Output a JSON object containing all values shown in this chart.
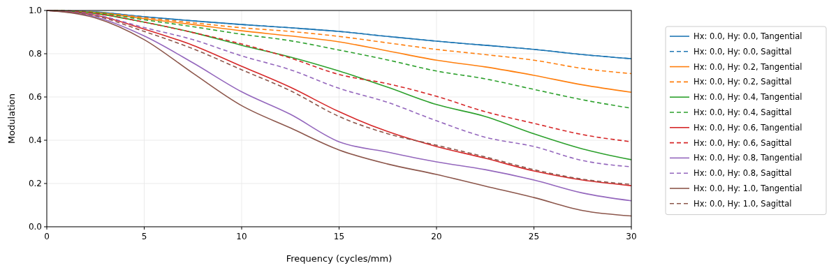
{
  "chart_data": {
    "type": "line",
    "xlabel": "Frequency (cycles/mm)",
    "ylabel": "Modulation",
    "x": [
      0,
      2.5,
      5,
      7.5,
      10,
      12.5,
      15,
      17.5,
      20,
      22.5,
      25,
      27.5,
      30
    ],
    "xlim": [
      0,
      30
    ],
    "xticks": [
      0,
      5,
      10,
      15,
      20,
      25,
      30
    ],
    "ylim": [
      0,
      1
    ],
    "yticks": [
      {
        "value": 0,
        "label": "0.0"
      },
      {
        "value": 0.2,
        "label": "0.2"
      },
      {
        "value": 0.4,
        "label": "0.4"
      },
      {
        "value": 0.6,
        "label": "0.6"
      },
      {
        "value": 0.8,
        "label": "0.8"
      },
      {
        "value": 1,
        "label": "1.0"
      }
    ],
    "grid": true,
    "legend": "right",
    "marker": "none",
    "series": [
      {
        "name": "Hx: 0.0, Hy: 0.0, Tangential",
        "color": "#1f77b4",
        "line_style": "solid",
        "values": [
          1,
          0.993,
          0.971,
          0.952,
          0.935,
          0.92,
          0.903,
          0.88,
          0.858,
          0.839,
          0.82,
          0.796,
          0.777
        ]
      },
      {
        "name": "Hx: 0.0, Hy: 0.0, Sagittal",
        "color": "#1f77b4",
        "line_style": "dashed",
        "values": [
          1,
          0.993,
          0.971,
          0.952,
          0.935,
          0.92,
          0.903,
          0.88,
          0.858,
          0.839,
          0.82,
          0.796,
          0.777
        ]
      },
      {
        "name": "Hx: 0.0, Hy: 0.2, Tangential",
        "color": "#ff7f0e",
        "line_style": "solid",
        "values": [
          1,
          0.99,
          0.962,
          0.935,
          0.906,
          0.882,
          0.855,
          0.813,
          0.77,
          0.739,
          0.7,
          0.656,
          0.622
        ]
      },
      {
        "name": "Hx: 0.0, Hy: 0.2, Sagittal",
        "color": "#ff7f0e",
        "line_style": "dashed",
        "values": [
          1,
          0.992,
          0.967,
          0.943,
          0.92,
          0.903,
          0.88,
          0.85,
          0.82,
          0.796,
          0.77,
          0.732,
          0.708
        ]
      },
      {
        "name": "Hx: 0.0, Hy: 0.4, Tangential",
        "color": "#2ca02c",
        "line_style": "solid",
        "values": [
          1,
          0.986,
          0.946,
          0.898,
          0.839,
          0.785,
          0.72,
          0.645,
          0.565,
          0.51,
          0.43,
          0.36,
          0.31
        ]
      },
      {
        "name": "Hx: 0.0, Hy: 0.4, Sagittal",
        "color": "#2ca02c",
        "line_style": "dashed",
        "values": [
          1,
          0.99,
          0.957,
          0.925,
          0.89,
          0.86,
          0.817,
          0.771,
          0.72,
          0.684,
          0.635,
          0.587,
          0.548
        ]
      },
      {
        "name": "Hx: 0.0, Hy: 0.6, Tangential",
        "color": "#d62728",
        "line_style": "solid",
        "values": [
          1,
          0.978,
          0.914,
          0.839,
          0.742,
          0.645,
          0.532,
          0.44,
          0.371,
          0.317,
          0.258,
          0.216,
          0.19
        ]
      },
      {
        "name": "Hx: 0.0, Hy: 0.6, Sagittal",
        "color": "#d62728",
        "line_style": "dashed",
        "values": [
          1,
          0.986,
          0.946,
          0.898,
          0.845,
          0.78,
          0.704,
          0.661,
          0.603,
          0.532,
          0.478,
          0.426,
          0.393
        ]
      },
      {
        "name": "Hx: 0.0, Hy: 0.8, Tangential",
        "color": "#9467bd",
        "line_style": "solid",
        "values": [
          1,
          0.97,
          0.882,
          0.758,
          0.624,
          0.52,
          0.393,
          0.345,
          0.3,
          0.264,
          0.216,
          0.156,
          0.12
        ]
      },
      {
        "name": "Hx: 0.0, Hy: 0.8, Sagittal",
        "color": "#9467bd",
        "line_style": "dashed",
        "values": [
          1,
          0.98,
          0.921,
          0.865,
          0.79,
          0.726,
          0.64,
          0.575,
          0.49,
          0.414,
          0.371,
          0.306,
          0.277
        ]
      },
      {
        "name": "Hx: 0.0, Hy: 1.0, Tangential",
        "color": "#8c564b",
        "line_style": "solid",
        "values": [
          1,
          0.965,
          0.865,
          0.71,
          0.56,
          0.457,
          0.355,
          0.29,
          0.242,
          0.188,
          0.135,
          0.075,
          0.05
        ]
      },
      {
        "name": "Hx: 0.0, Hy: 1.0, Sagittal",
        "color": "#8c564b",
        "line_style": "dashed",
        "values": [
          1,
          0.975,
          0.903,
          0.823,
          0.726,
          0.629,
          0.51,
          0.43,
          0.377,
          0.323,
          0.264,
          0.22,
          0.196
        ]
      }
    ]
  }
}
